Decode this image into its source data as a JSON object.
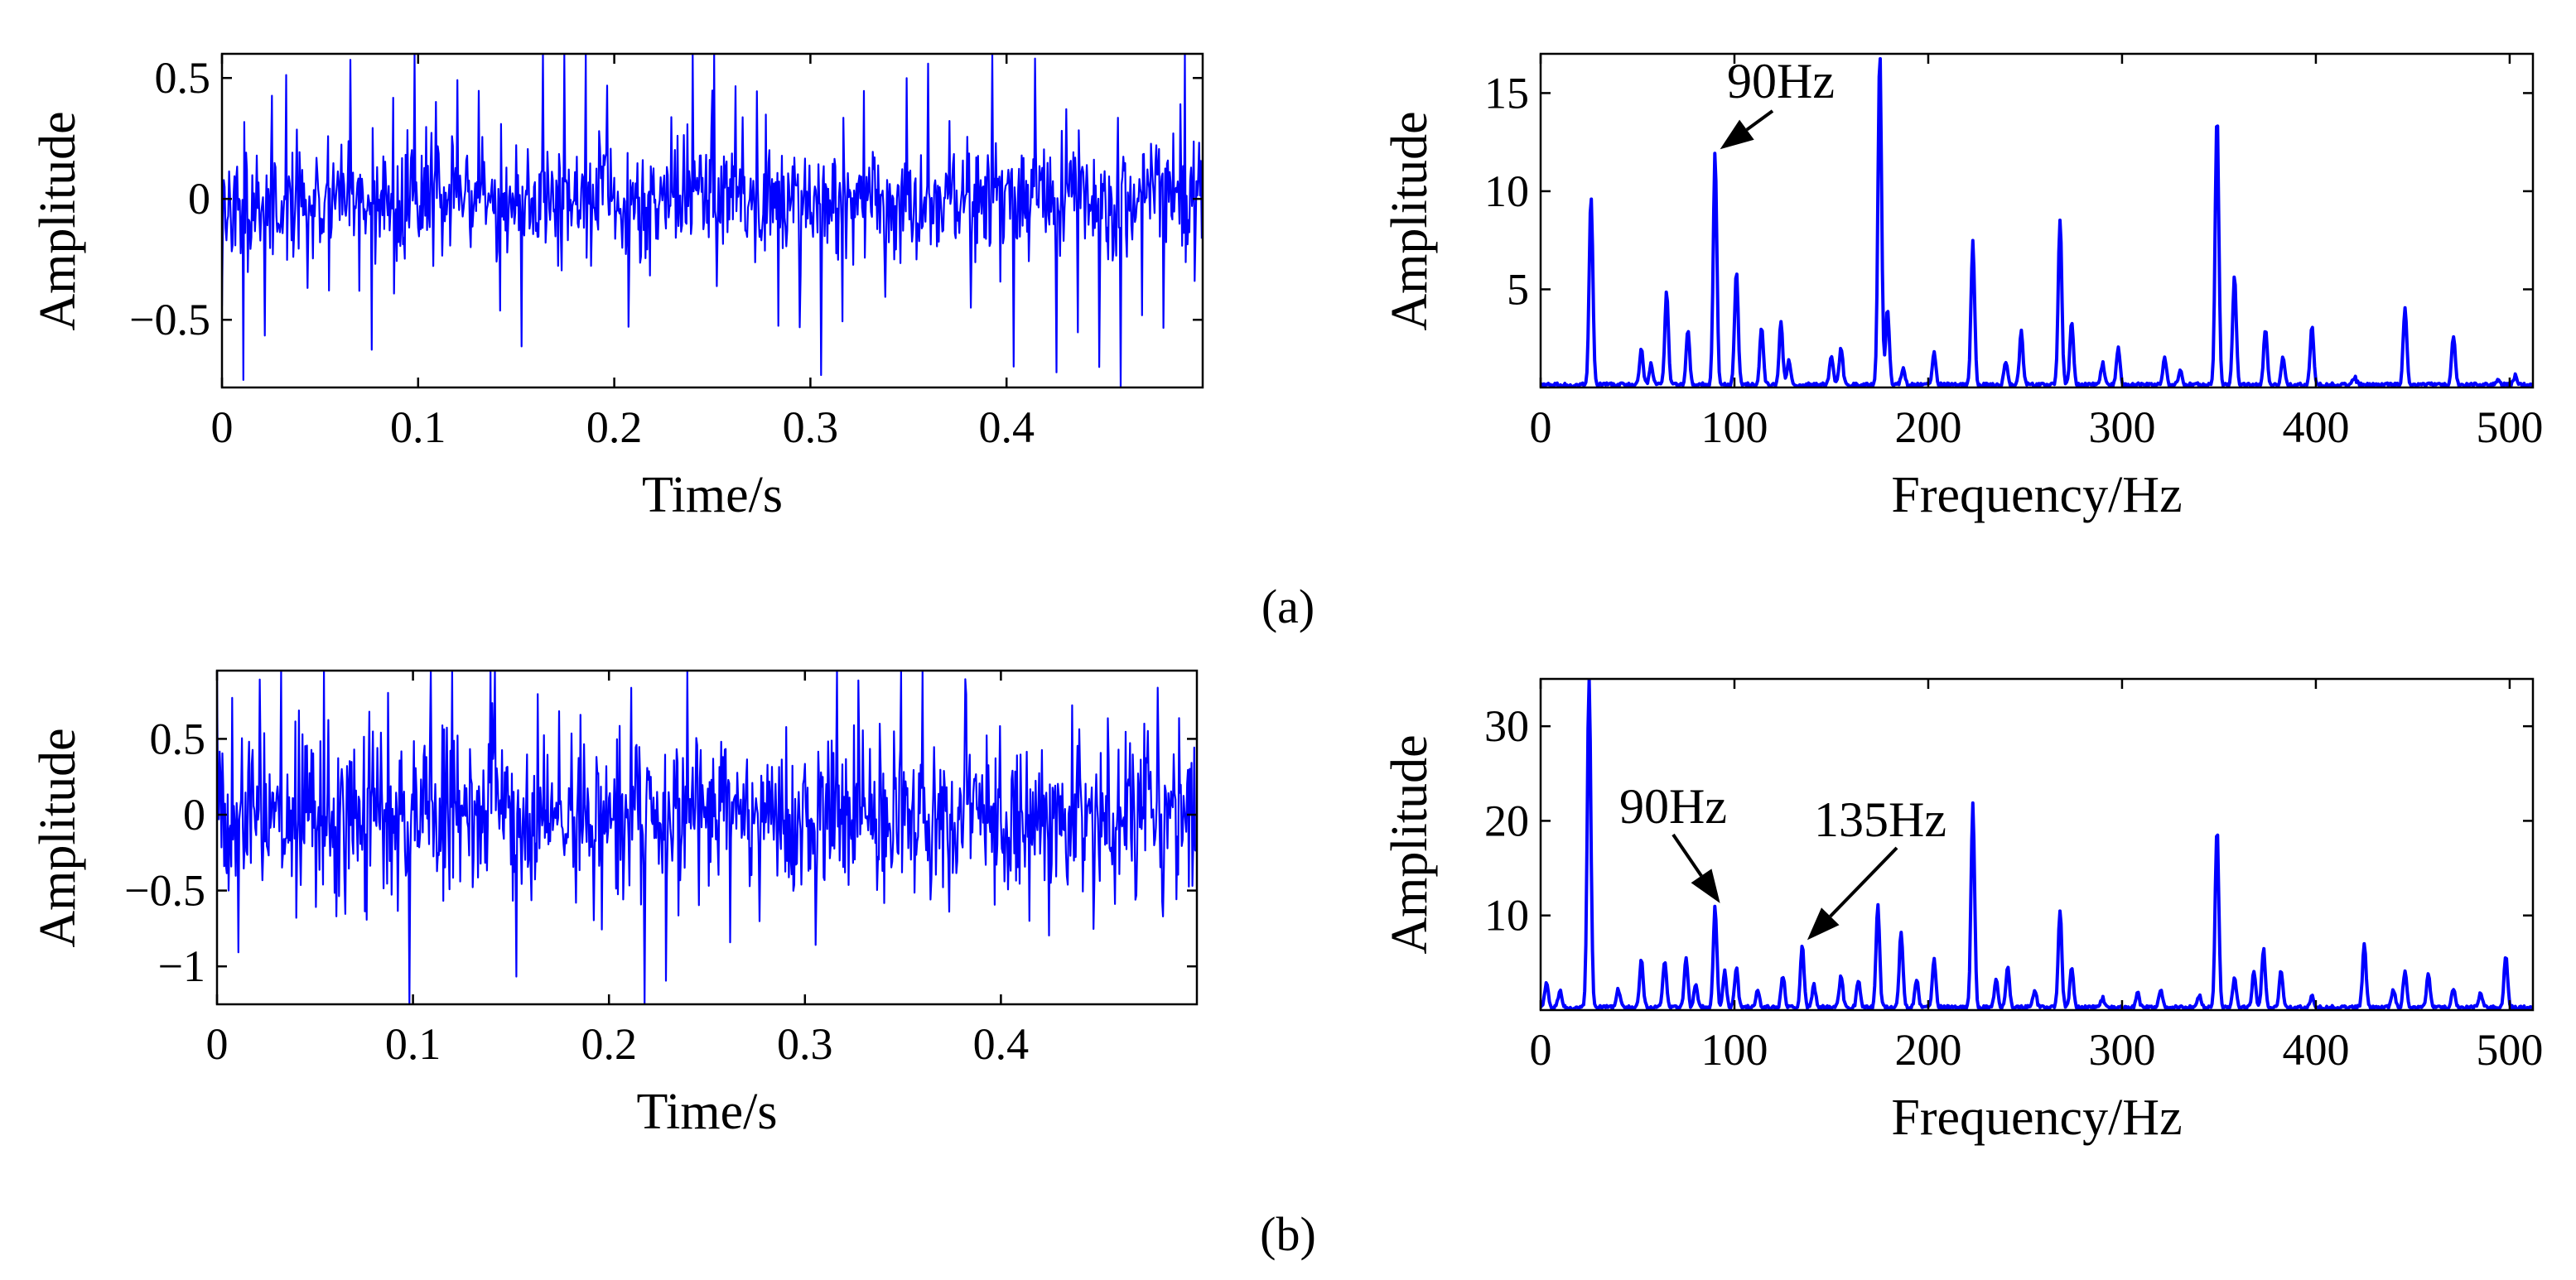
{
  "chart_data": [
    {
      "id": "a-time",
      "type": "line",
      "xlabel": "Time/s",
      "ylabel": "Amplitude",
      "xlim": [
        0,
        0.5
      ],
      "ylim": [
        -0.78,
        0.6
      ],
      "xticks": [
        0,
        0.1,
        0.2,
        0.3,
        0.4
      ],
      "yticks": [
        -0.5,
        0,
        0.5
      ],
      "xtick_labels": [
        "0",
        "0.1",
        "0.2",
        "0.3",
        "0.4"
      ],
      "ytick_labels": [
        "−0.5",
        "0",
        "0.5"
      ],
      "signal": {
        "samples": 1100,
        "noise_sigma": 0.12,
        "impulse_interval_s": 0.0111,
        "impulse_amplitude": 0.55,
        "seed": 11
      },
      "color": "#0000ff"
    },
    {
      "id": "a-spectrum",
      "type": "line",
      "xlabel": "Frequency/Hz",
      "ylabel": "Amplitude",
      "xlim": [
        0,
        512
      ],
      "ylim": [
        0,
        17
      ],
      "xticks": [
        0,
        100,
        200,
        300,
        400,
        500
      ],
      "yticks": [
        5,
        10,
        15
      ],
      "xtick_labels": [
        "0",
        "100",
        "200",
        "300",
        "400",
        "500"
      ],
      "ytick_labels": [
        "5",
        "10",
        "15"
      ],
      "peaks": [
        {
          "f": 26,
          "a": 9.7
        },
        {
          "f": 52,
          "a": 1.8
        },
        {
          "f": 57,
          "a": 1.1
        },
        {
          "f": 65,
          "a": 4.7
        },
        {
          "f": 76,
          "a": 2.7
        },
        {
          "f": 90,
          "a": 11.8
        },
        {
          "f": 101,
          "a": 5.8
        },
        {
          "f": 114,
          "a": 3.0
        },
        {
          "f": 124,
          "a": 3.2
        },
        {
          "f": 128,
          "a": 1.2
        },
        {
          "f": 150,
          "a": 1.5
        },
        {
          "f": 155,
          "a": 1.9
        },
        {
          "f": 175,
          "a": 17
        },
        {
          "f": 179,
          "a": 3.9
        },
        {
          "f": 187,
          "a": 0.8
        },
        {
          "f": 203,
          "a": 1.6
        },
        {
          "f": 223,
          "a": 7.3
        },
        {
          "f": 240,
          "a": 1.2
        },
        {
          "f": 248,
          "a": 2.7
        },
        {
          "f": 268,
          "a": 8.4
        },
        {
          "f": 274,
          "a": 3.3
        },
        {
          "f": 290,
          "a": 1.1
        },
        {
          "f": 298,
          "a": 1.9
        },
        {
          "f": 322,
          "a": 1.4
        },
        {
          "f": 330,
          "a": 0.7
        },
        {
          "f": 349,
          "a": 13.8
        },
        {
          "f": 358,
          "a": 5.5
        },
        {
          "f": 374,
          "a": 2.9
        },
        {
          "f": 383,
          "a": 1.4
        },
        {
          "f": 398,
          "a": 3.0
        },
        {
          "f": 420,
          "a": 0.4
        },
        {
          "f": 446,
          "a": 4.0
        },
        {
          "f": 471,
          "a": 2.5
        },
        {
          "f": 494,
          "a": 0.3
        },
        {
          "f": 503,
          "a": 0.5
        }
      ],
      "annotations": [
        {
          "text": "90Hz",
          "target": [
            90,
            11.8
          ]
        }
      ],
      "color": "#0000ff"
    },
    {
      "id": "b-time",
      "type": "line",
      "xlabel": "Time/s",
      "ylabel": "Amplitude",
      "xlim": [
        0,
        0.5
      ],
      "ylim": [
        -1.25,
        0.95
      ],
      "xticks": [
        0,
        0.1,
        0.2,
        0.3,
        0.4
      ],
      "yticks": [
        -1,
        -0.5,
        0,
        0.5
      ],
      "xtick_labels": [
        "0",
        "0.1",
        "0.2",
        "0.3",
        "0.4"
      ],
      "ytick_labels": [
        "−1",
        "−0.5",
        "0",
        "0.5"
      ],
      "signal": {
        "samples": 1100,
        "noise_sigma": 0.26,
        "impulse_interval_s": 0.0111,
        "impulse_amplitude": 0.75,
        "seed": 29
      },
      "color": "#0000ff"
    },
    {
      "id": "b-spectrum",
      "type": "line",
      "xlabel": "Frequency/Hz",
      "ylabel": "Amplitude",
      "xlim": [
        0,
        512
      ],
      "ylim": [
        0,
        35
      ],
      "xticks": [
        0,
        100,
        200,
        300,
        400,
        500
      ],
      "yticks": [
        10,
        20,
        30
      ],
      "xtick_labels": [
        "0",
        "100",
        "200",
        "300",
        "400",
        "500"
      ],
      "ytick_labels": [
        "10",
        "20",
        "30"
      ],
      "peaks": [
        {
          "f": 3,
          "a": 2.6
        },
        {
          "f": 10,
          "a": 1.9
        },
        {
          "f": 25,
          "a": 35
        },
        {
          "f": 40,
          "a": 2.0
        },
        {
          "f": 52,
          "a": 5.0
        },
        {
          "f": 64,
          "a": 5.0
        },
        {
          "f": 75,
          "a": 5.2
        },
        {
          "f": 80,
          "a": 2.5
        },
        {
          "f": 90,
          "a": 10.6
        },
        {
          "f": 95,
          "a": 3.8
        },
        {
          "f": 101,
          "a": 4.2
        },
        {
          "f": 112,
          "a": 2.0
        },
        {
          "f": 125,
          "a": 3.4
        },
        {
          "f": 135,
          "a": 6.7
        },
        {
          "f": 141,
          "a": 2.4
        },
        {
          "f": 155,
          "a": 3.4
        },
        {
          "f": 164,
          "a": 3.0
        },
        {
          "f": 174,
          "a": 10.8
        },
        {
          "f": 186,
          "a": 8.0
        },
        {
          "f": 194,
          "a": 3.0
        },
        {
          "f": 203,
          "a": 5.0
        },
        {
          "f": 223,
          "a": 21.5
        },
        {
          "f": 235,
          "a": 3.0
        },
        {
          "f": 241,
          "a": 4.3
        },
        {
          "f": 255,
          "a": 1.9
        },
        {
          "f": 268,
          "a": 10.2
        },
        {
          "f": 274,
          "a": 4.4
        },
        {
          "f": 290,
          "a": 1.0
        },
        {
          "f": 308,
          "a": 1.5
        },
        {
          "f": 320,
          "a": 1.9
        },
        {
          "f": 340,
          "a": 1.3
        },
        {
          "f": 349,
          "a": 19.0
        },
        {
          "f": 358,
          "a": 3.0
        },
        {
          "f": 368,
          "a": 3.8
        },
        {
          "f": 373,
          "a": 6.2
        },
        {
          "f": 382,
          "a": 4.0
        },
        {
          "f": 398,
          "a": 1.3
        },
        {
          "f": 425,
          "a": 6.7
        },
        {
          "f": 440,
          "a": 1.9
        },
        {
          "f": 446,
          "a": 4.0
        },
        {
          "f": 458,
          "a": 3.4
        },
        {
          "f": 471,
          "a": 2.0
        },
        {
          "f": 485,
          "a": 1.6
        },
        {
          "f": 498,
          "a": 5.4
        }
      ],
      "annotations": [
        {
          "text": "90Hz",
          "target": [
            90,
            10.6
          ]
        },
        {
          "text": "135Hz",
          "target": [
            135,
            6.7
          ]
        }
      ],
      "color": "#0000ff"
    }
  ],
  "captions": {
    "a": "(a)",
    "b": "(b)"
  }
}
